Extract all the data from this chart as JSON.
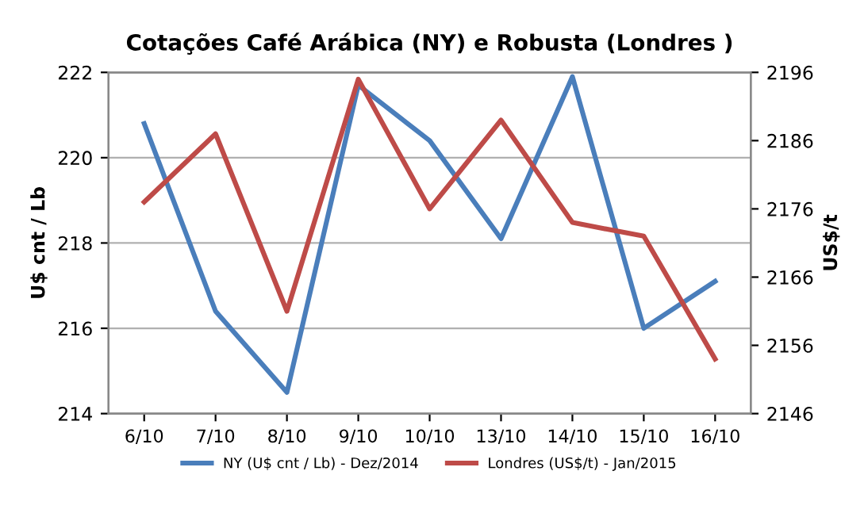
{
  "chart_data": {
    "type": "line",
    "title": "Cotações Café Arábica (NY) e Robusta (Londres )",
    "categories": [
      "6/10",
      "7/10",
      "8/10",
      "9/10",
      "10/10",
      "13/10",
      "14/10",
      "15/10",
      "16/10"
    ],
    "series": [
      {
        "name": "NY (U$ cnt / Lb) - Dez/2014",
        "color": "#4a7ebb",
        "values": [
          220.8,
          216.4,
          214.5,
          221.7,
          220.4,
          218.1,
          221.9,
          216.0,
          217.1
        ]
      },
      {
        "name": "Londres (US$/t) - Jan/2015",
        "color": "#be4b48",
        "axis": "y2",
        "values": [
          2177,
          2187,
          2161,
          2195,
          2176,
          2189,
          2174,
          2172,
          2154
        ]
      }
    ],
    "ylabel": "U$ cnt / Lb",
    "y2label": "US$/t",
    "ylim": [
      214,
      222
    ],
    "yticks": [
      214,
      216,
      218,
      220,
      222
    ],
    "y2lim": [
      2146,
      2196
    ],
    "y2ticks": [
      2146,
      2156,
      2166,
      2176,
      2186,
      2196
    ],
    "grid": "y",
    "legend": "bottom",
    "marker": "none",
    "line_style": "solid"
  }
}
